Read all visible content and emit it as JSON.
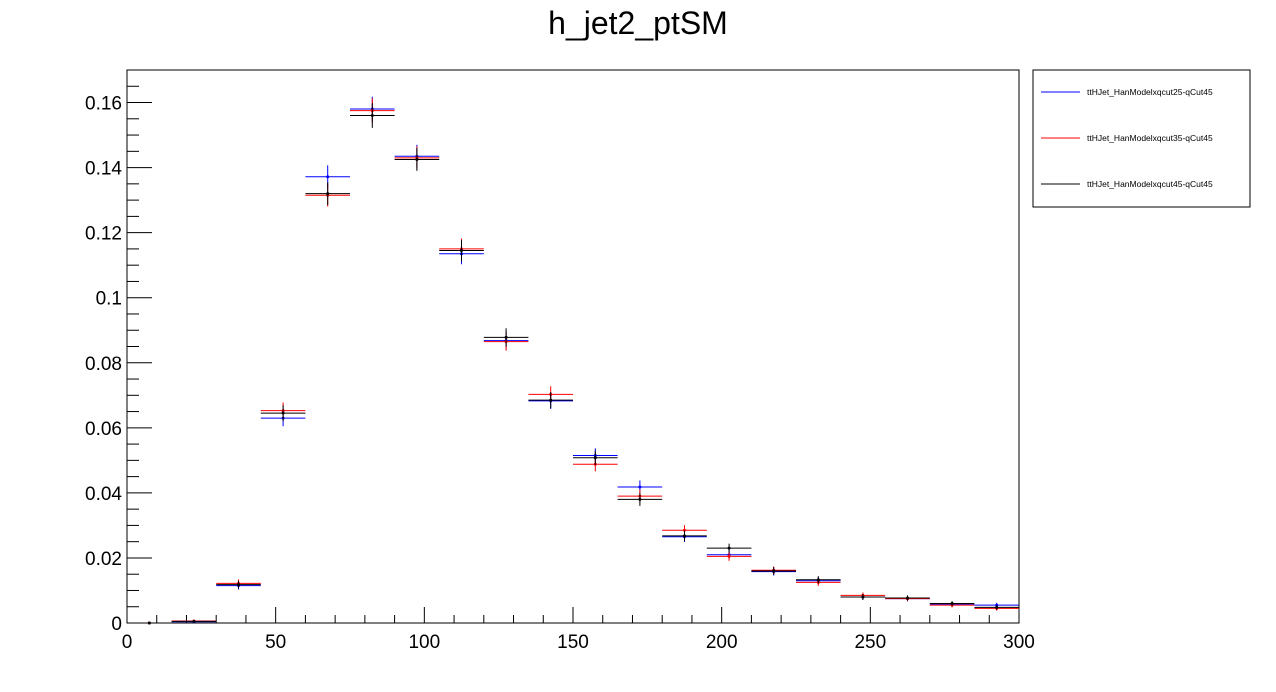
{
  "chart_data": {
    "type": "scatter",
    "title": "h_jet2_ptSM",
    "xlabel": "",
    "ylabel": "",
    "xlim": [
      0,
      300
    ],
    "ylim": [
      0,
      0.17
    ],
    "x_ticks": [
      0,
      50,
      100,
      150,
      200,
      250,
      300
    ],
    "x_tick_labels": [
      "0",
      "50",
      "100",
      "150",
      "200",
      "250",
      "300"
    ],
    "y_ticks": [
      0,
      0.02,
      0.04,
      0.06,
      0.08,
      0.1,
      0.12,
      0.14,
      0.16
    ],
    "y_tick_labels": [
      "0",
      "0.02",
      "0.04",
      "0.06",
      "0.08",
      "0.1",
      "0.12",
      "0.14",
      "0.16"
    ],
    "grid": false,
    "legend_position": "outside-top-right",
    "bin_edges": [
      0,
      15,
      30,
      45,
      60,
      75,
      90,
      105,
      120,
      135,
      150,
      165,
      180,
      195,
      210,
      225,
      240,
      255,
      270,
      285,
      300
    ],
    "series": [
      {
        "name": "ttHJet_HanModelxqcut25-qCut45",
        "color": "#0000ff",
        "values": [
          0.0,
          0.0004,
          0.0115,
          0.063,
          0.1372,
          0.158,
          0.1435,
          0.1135,
          0.0868,
          0.0683,
          0.0515,
          0.0418,
          0.0265,
          0.021,
          0.0158,
          0.013,
          0.008,
          0.0075,
          0.0058,
          0.0055
        ],
        "errors": [
          0.0,
          0.0003,
          0.0012,
          0.0025,
          0.0035,
          0.0038,
          0.0035,
          0.0032,
          0.0028,
          0.0025,
          0.0022,
          0.002,
          0.0016,
          0.0014,
          0.0012,
          0.0011,
          0.0009,
          0.0008,
          0.0007,
          0.0007
        ]
      },
      {
        "name": "ttHJet_HanModelxqcut35-qCut45",
        "color": "#ff0000",
        "values": [
          0.0,
          0.0006,
          0.0122,
          0.0653,
          0.1315,
          0.1575,
          0.143,
          0.115,
          0.0865,
          0.0703,
          0.0488,
          0.039,
          0.0285,
          0.0205,
          0.0162,
          0.0125,
          0.0085,
          0.0075,
          0.0055,
          0.0045
        ],
        "errors": [
          0.0,
          0.0003,
          0.0012,
          0.0025,
          0.0035,
          0.0038,
          0.0035,
          0.0032,
          0.0028,
          0.0025,
          0.0022,
          0.002,
          0.0016,
          0.0014,
          0.0012,
          0.0011,
          0.0009,
          0.0008,
          0.0007,
          0.0007
        ]
      },
      {
        "name": "ttHJet_HanModelxqcut45-qCut45",
        "color": "#000000",
        "values": [
          0.0,
          0.0005,
          0.0118,
          0.0645,
          0.132,
          0.156,
          0.1425,
          0.1145,
          0.0878,
          0.0685,
          0.0508,
          0.038,
          0.0268,
          0.023,
          0.016,
          0.0133,
          0.008,
          0.0077,
          0.006,
          0.0048
        ],
        "errors": [
          0.0,
          0.0003,
          0.0012,
          0.0025,
          0.0035,
          0.0038,
          0.0035,
          0.0032,
          0.0028,
          0.0025,
          0.0022,
          0.002,
          0.0016,
          0.0014,
          0.0012,
          0.0011,
          0.0009,
          0.0008,
          0.0007,
          0.0007
        ]
      }
    ]
  }
}
